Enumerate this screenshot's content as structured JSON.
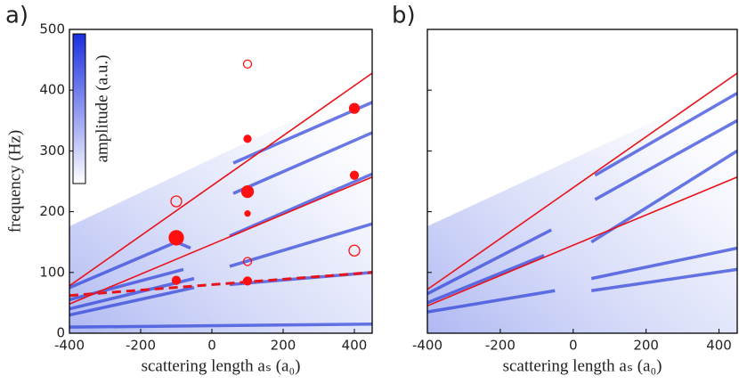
{
  "chart_data": [
    {
      "type": "line",
      "panel_label": "a)",
      "xlabel": "scattering length aₛ (a₀)",
      "ylabel": "frequency (Hz)",
      "colorbar_label": "amplitude (a.u.)",
      "colorbar_color": "#1a2fe0",
      "xlim": [
        -400,
        450
      ],
      "ylim": [
        0,
        500
      ],
      "xticks": [
        -400,
        -200,
        0,
        200,
        400
      ],
      "yticks": [
        0,
        100,
        200,
        300,
        400,
        500
      ],
      "show_ytick_labels": true,
      "branch_color": "#2b3fd8",
      "series": [
        {
          "color": "#e8121a",
          "x": [
            -400,
            450
          ],
          "values": [
            78,
            428
          ]
        },
        {
          "color": "#e8121a",
          "x": [
            -400,
            450
          ],
          "values": [
            48,
            257
          ]
        },
        {
          "color": "#e8121a",
          "x": [
            -400,
            450
          ],
          "values": [
            62,
            100
          ],
          "dash": true
        }
      ],
      "branches": [
        {
          "x": [
            -400,
            -100,
            -60
          ],
          "values": [
            75,
            150,
            140
          ]
        },
        {
          "x": [
            50,
            450
          ],
          "values": [
            160,
            262
          ]
        },
        {
          "x": [
            -400,
            -80
          ],
          "values": [
            55,
            105
          ]
        },
        {
          "x": [
            50,
            450
          ],
          "values": [
            110,
            180
          ]
        },
        {
          "x": [
            -400,
            -50
          ],
          "values": [
            30,
            75
          ]
        },
        {
          "x": [
            50,
            450
          ],
          "values": [
            80,
            100
          ]
        },
        {
          "x": [
            -400,
            -50
          ],
          "values": [
            40,
            90
          ]
        },
        {
          "x": [
            60,
            450
          ],
          "values": [
            230,
            330
          ]
        },
        {
          "x": [
            60,
            450
          ],
          "values": [
            280,
            380
          ]
        },
        {
          "x": [
            -400,
            450
          ],
          "values": [
            10,
            15
          ]
        }
      ],
      "points": {
        "color": "#ff1010",
        "x": [
          -100,
          -100,
          100,
          100,
          100,
          100,
          400,
          400,
          -100,
          100,
          100,
          400
        ],
        "values": [
          157,
          87,
          320,
          233,
          197,
          86,
          370,
          260,
          217,
          443,
          118,
          136
        ],
        "sizes": [
          8,
          4.5,
          4,
          6.5,
          3,
          4.5,
          5.5,
          4.5,
          6,
          4.5,
          4.5,
          6
        ],
        "filled": [
          true,
          true,
          true,
          true,
          true,
          true,
          true,
          true,
          false,
          false,
          false,
          false
        ]
      }
    },
    {
      "type": "line",
      "panel_label": "b)",
      "xlabel": "scattering length aₛ (a₀)",
      "xlim": [
        -400,
        450
      ],
      "ylim": [
        0,
        500
      ],
      "xticks": [
        -400,
        -200,
        0,
        200,
        400
      ],
      "yticks": [
        0,
        100,
        200,
        300,
        400,
        500
      ],
      "show_ytick_labels": false,
      "branch_color": "#2b3fd8",
      "series": [
        {
          "color": "#e8121a",
          "x": [
            -400,
            450
          ],
          "values": [
            72,
            428
          ]
        },
        {
          "color": "#e8121a",
          "x": [
            -400,
            450
          ],
          "values": [
            45,
            257
          ]
        }
      ],
      "branches": [
        {
          "x": [
            -400,
            -60
          ],
          "values": [
            65,
            170
          ]
        },
        {
          "x": [
            -400,
            -80
          ],
          "values": [
            50,
            128
          ]
        },
        {
          "x": [
            -400,
            -50
          ],
          "values": [
            35,
            70
          ]
        },
        {
          "x": [
            60,
            450
          ],
          "values": [
            220,
            350
          ]
        },
        {
          "x": [
            60,
            450
          ],
          "values": [
            260,
            395
          ]
        },
        {
          "x": [
            50,
            450
          ],
          "values": [
            150,
            300
          ]
        },
        {
          "x": [
            50,
            450
          ],
          "values": [
            90,
            140
          ]
        },
        {
          "x": [
            50,
            450
          ],
          "values": [
            70,
            105
          ]
        }
      ]
    }
  ]
}
